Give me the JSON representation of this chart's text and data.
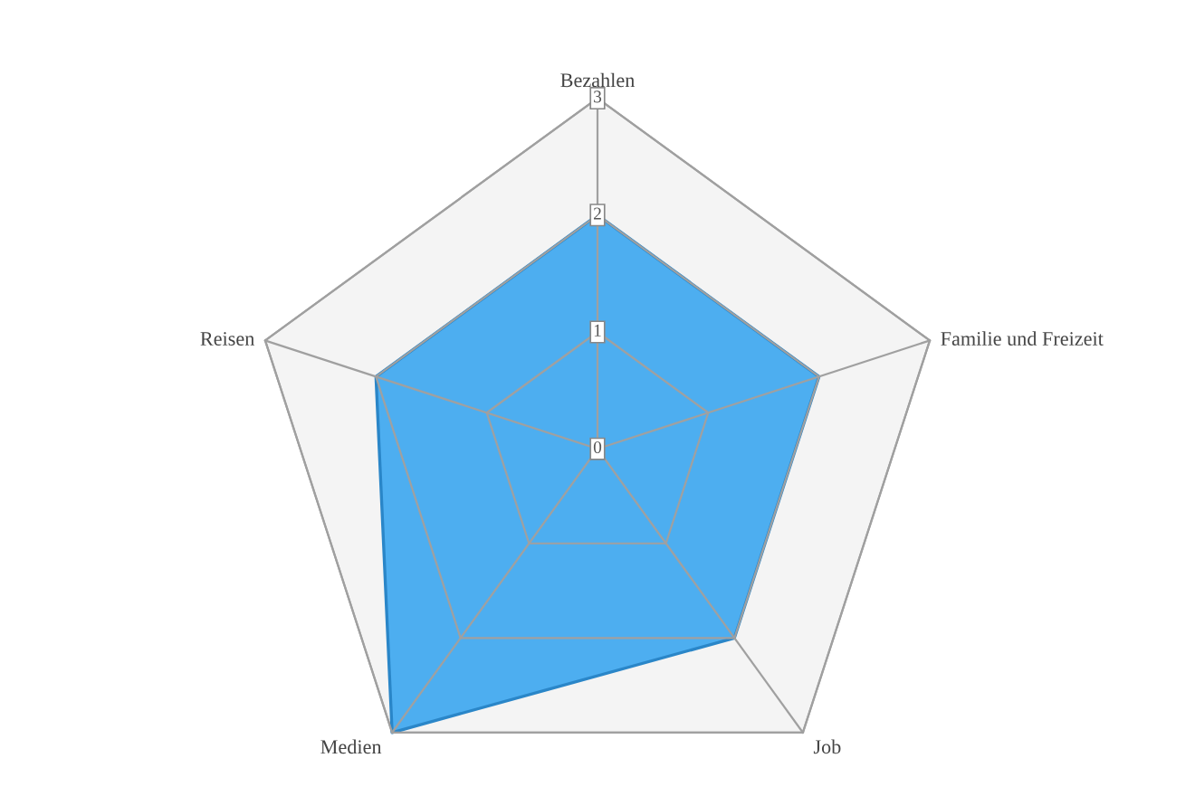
{
  "chart_data": {
    "type": "radar",
    "categories": [
      "Bezahlen",
      "Familie und Freizeit",
      "Job",
      "Medien",
      "Reisen"
    ],
    "series": [
      {
        "color": "#4daef0",
        "values": [
          2,
          2,
          2,
          3,
          2
        ]
      }
    ],
    "ylim": [
      0,
      3
    ],
    "yticks": [
      0,
      1,
      2,
      3
    ],
    "grid": true
  }
}
